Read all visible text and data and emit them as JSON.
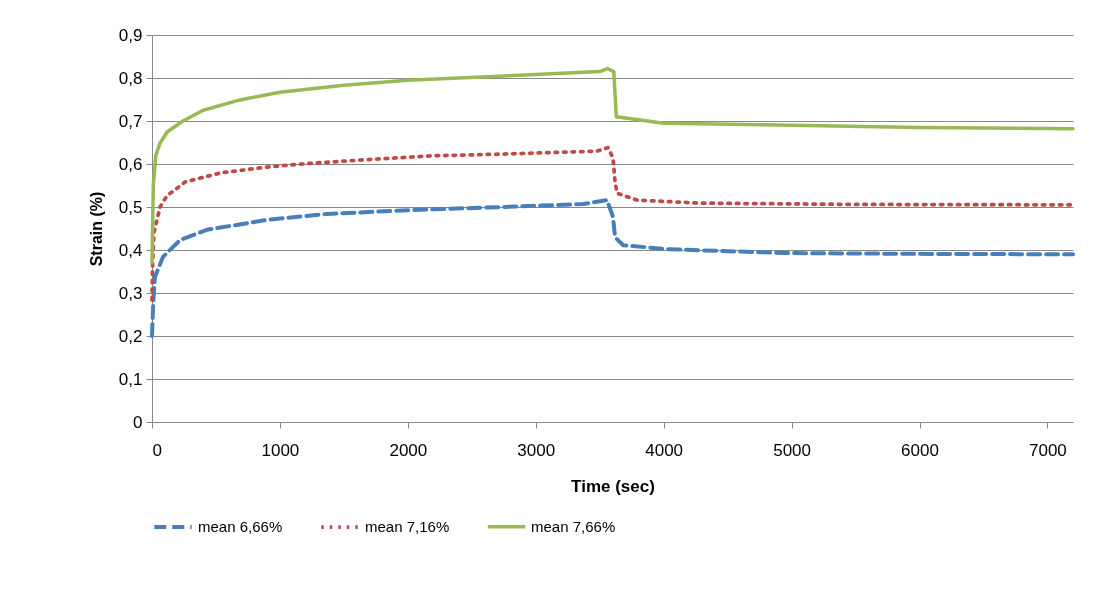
{
  "chart_data": {
    "type": "line",
    "xlabel": "Time (sec)",
    "ylabel": "Strain  (%)",
    "xlim": [
      0,
      7200
    ],
    "xticks": [
      0,
      1000,
      2000,
      3000,
      4000,
      5000,
      6000,
      7000
    ],
    "ylim": [
      0,
      0.9
    ],
    "yticks": [
      0,
      {
        "value": 0.1,
        "label": "0,1"
      },
      {
        "value": 0.2,
        "label": "0,2"
      },
      {
        "value": 0.3,
        "label": "0,3"
      },
      {
        "value": 0.4,
        "label": "0,4"
      },
      {
        "value": 0.5,
        "label": "0,5"
      },
      {
        "value": 0.6,
        "label": "0,6"
      },
      {
        "value": 0.7,
        "label": "0,7"
      },
      {
        "value": 0.8,
        "label": "0,8"
      },
      {
        "value": 0.9,
        "label": "0,9"
      }
    ],
    "grid": "y",
    "legend": "bottom",
    "marker": "none",
    "series": [
      {
        "name": "mean 6,66%",
        "color": "#4a7ebb",
        "line_style": "dashed",
        "x": [
          0,
          10,
          23,
          86,
          219,
          430,
          899,
          1368,
          2040,
          2744,
          3370,
          3557,
          3604,
          3620,
          3683,
          4027,
          4934,
          6000,
          7200
        ],
        "values": [
          0.2,
          0.28,
          0.337,
          0.384,
          0.423,
          0.447,
          0.47,
          0.484,
          0.493,
          0.5,
          0.507,
          0.516,
          0.477,
          0.43,
          0.411,
          0.402,
          0.393,
          0.391,
          0.39
        ]
      },
      {
        "name": "mean 7,16%",
        "color": "#be4b48",
        "line_style": "dotted",
        "x": [
          0,
          5,
          15,
          63,
          117,
          258,
          532,
          899,
          1259,
          1728,
          2189,
          2744,
          3479,
          3565,
          3604,
          3620,
          3636,
          3792,
          4285,
          5500,
          7200
        ],
        "values": [
          0.284,
          0.37,
          0.44,
          0.5,
          0.526,
          0.558,
          0.579,
          0.593,
          0.602,
          0.611,
          0.619,
          0.623,
          0.63,
          0.638,
          0.614,
          0.558,
          0.532,
          0.516,
          0.509,
          0.506,
          0.505
        ]
      },
      {
        "name": "mean 7,66%",
        "color": "#98b954",
        "line_style": "solid",
        "x": [
          0,
          10,
          30,
          63,
          120,
          242,
          400,
          688,
          1000,
          1500,
          2000,
          3000,
          3500,
          3560,
          3610,
          3630,
          4000,
          5000,
          6000,
          7200
        ],
        "values": [
          0.37,
          0.55,
          0.62,
          0.649,
          0.675,
          0.7,
          0.725,
          0.749,
          0.767,
          0.783,
          0.795,
          0.808,
          0.815,
          0.822,
          0.815,
          0.71,
          0.695,
          0.69,
          0.685,
          0.682
        ]
      }
    ]
  }
}
